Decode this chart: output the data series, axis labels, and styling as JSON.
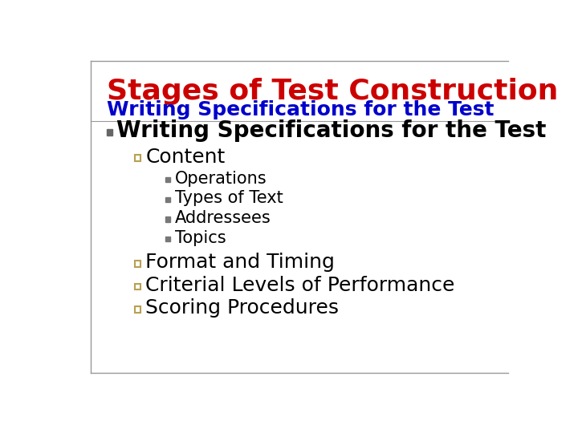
{
  "title": "Stages of Test Construction",
  "subtitle": "Writing Specifications for the Test",
  "title_color": "#cc0000",
  "subtitle_color": "#0000cc",
  "background_color": "#ffffff",
  "border_color": "#999999",
  "level1_bullet_color": "#666666",
  "level2_bullet_color": "#b8a050",
  "level3_bullet_color": "#777777",
  "title_fontsize": 26,
  "subtitle_fontsize": 18,
  "l1_fontsize": 20,
  "l2_fontsize": 18,
  "l3_fontsize": 15,
  "level1_items": [
    {
      "text": "Writing Specifications for the Test",
      "bold": true,
      "sub_items": [
        {
          "text": "Content",
          "bold": false,
          "sub_items": [
            {
              "text": "Operations"
            },
            {
              "text": "Types of Text"
            },
            {
              "text": "Addressees"
            },
            {
              "text": "Topics"
            }
          ]
        },
        {
          "text": "Format and Timing",
          "bold": false,
          "sub_items": []
        },
        {
          "text": "Criterial Levels of Performance",
          "bold": false,
          "sub_items": []
        },
        {
          "text": "Scoring Procedures",
          "bold": false,
          "sub_items": []
        }
      ]
    }
  ]
}
